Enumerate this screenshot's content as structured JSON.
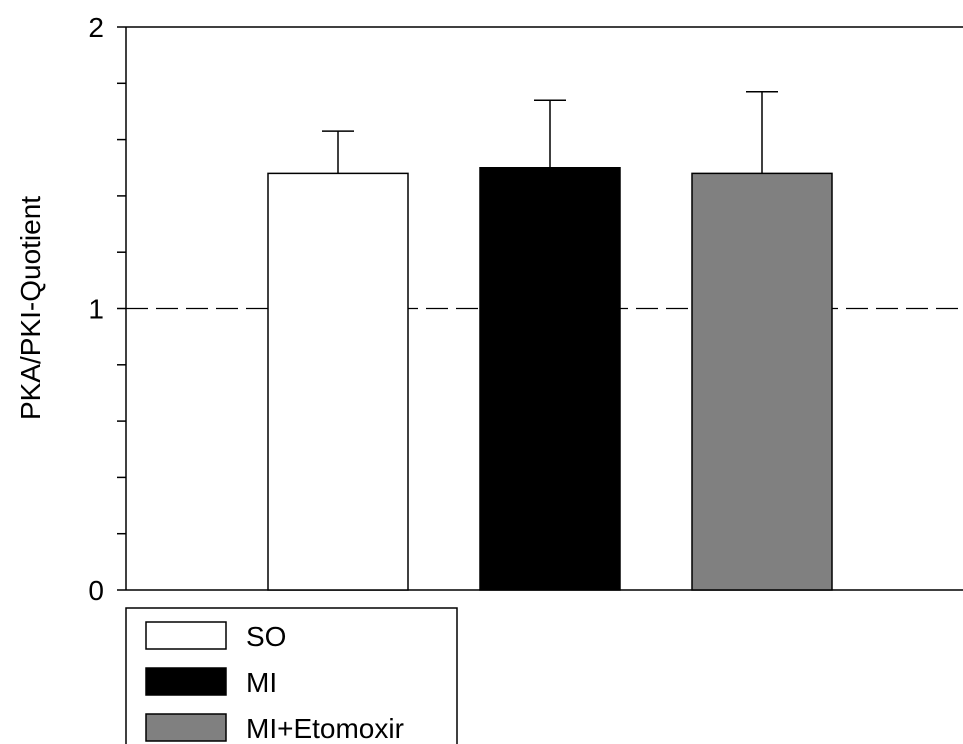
{
  "chart_data": {
    "type": "bar",
    "categories": [
      "SO",
      "MI",
      "MI+Etomoxir"
    ],
    "series": [
      {
        "name": "PKA/PKI-Quotient",
        "values": [
          1.48,
          1.5,
          1.48
        ],
        "error": [
          0.15,
          0.24,
          0.29
        ],
        "colors": [
          "#ffffff",
          "#000000",
          "#808080"
        ]
      }
    ],
    "title": "",
    "xlabel": "",
    "ylabel": "PKA/PKI-Quotient",
    "ylim": [
      0,
      2
    ],
    "yticks_major": [
      0,
      1,
      2
    ],
    "ytick_labels": [
      "0",
      "1",
      "2"
    ],
    "yticks_minor_step": 0.2,
    "reference_line": {
      "y": 1,
      "style": "dashed"
    },
    "grid": false,
    "legend": {
      "position": "bottom-left",
      "entries": [
        {
          "label": "SO",
          "color": "#ffffff"
        },
        {
          "label": "MI",
          "color": "#000000"
        },
        {
          "label": "MI+Etomoxir",
          "color": "#808080"
        }
      ]
    }
  }
}
